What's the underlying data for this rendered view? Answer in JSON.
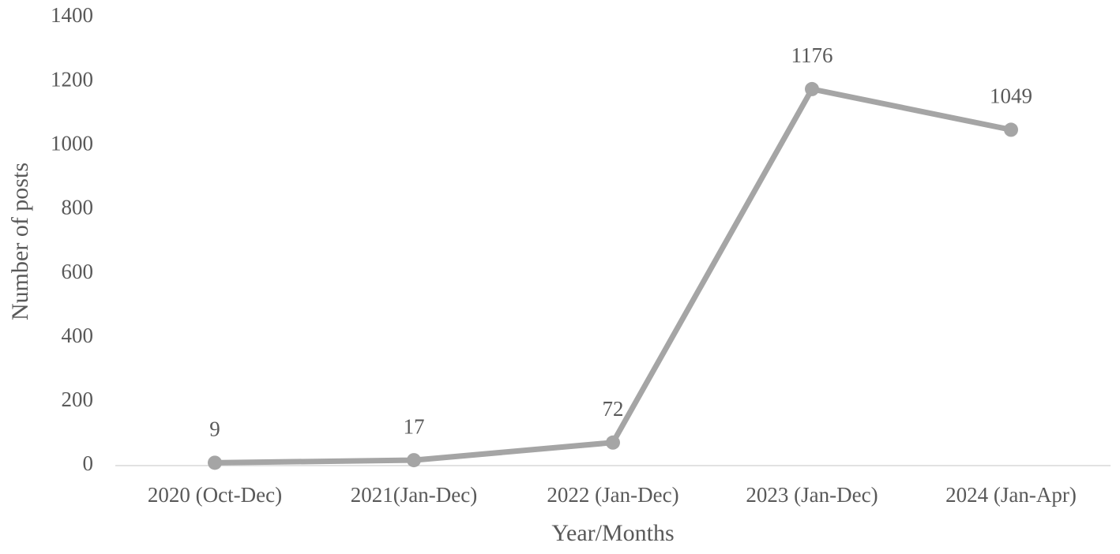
{
  "chart_data": {
    "type": "line",
    "x_label": "Year/Months",
    "y_label": "Number of posts",
    "categories": [
      "2020 (Oct-Dec)",
      "2021(Jan-Dec)",
      "2022 (Jan-Dec)",
      "2023 (Jan-Dec)",
      "2024 (Jan-Apr)"
    ],
    "series": [
      {
        "color": "#a5a5a5",
        "values": [
          9,
          17,
          72,
          1176,
          1049
        ]
      }
    ],
    "ylim": [
      0,
      1400
    ],
    "yticks": [
      0,
      200,
      400,
      600,
      800,
      1000,
      1200,
      1400
    ],
    "grid": false,
    "data_labels": true
  }
}
